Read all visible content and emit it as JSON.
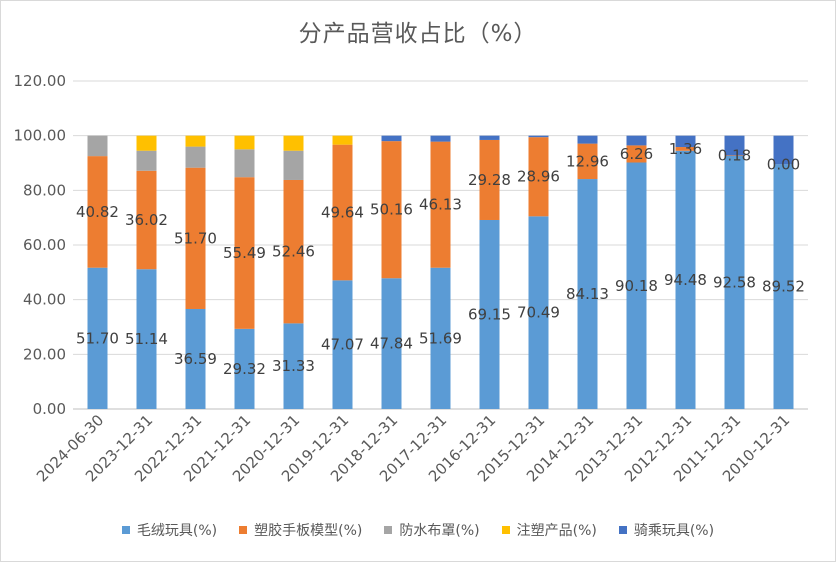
{
  "chart_data": {
    "type": "bar",
    "stacked": true,
    "title": "分产品营收占比（%）",
    "xlabel": "",
    "ylabel": "",
    "ylim": [
      0,
      120
    ],
    "yticks": [
      "0.00",
      "20.00",
      "40.00",
      "60.00",
      "80.00",
      "100.00",
      "120.00"
    ],
    "grid": true,
    "legend_position": "bottom",
    "categories": [
      "2024-06-30",
      "2023-12-31",
      "2022-12-31",
      "2021-12-31",
      "2020-12-31",
      "2019-12-31",
      "2018-12-31",
      "2017-12-31",
      "2016-12-31",
      "2015-12-31",
      "2014-12-31",
      "2013-12-31",
      "2012-12-31",
      "2011-12-31",
      "2010-12-31"
    ],
    "series": [
      {
        "name": "毛绒玩具(%)",
        "color": "#5b9bd5",
        "values": [
          51.7,
          51.14,
          36.59,
          29.32,
          31.33,
          47.07,
          47.84,
          51.69,
          69.15,
          70.49,
          84.13,
          90.18,
          94.48,
          92.58,
          89.52
        ],
        "labels": [
          "51.70",
          "51.14",
          "36.59",
          "29.32",
          "31.33",
          "47.07",
          "47.84",
          "51.69",
          "69.15",
          "70.49",
          "84.13",
          "90.18",
          "94.48",
          "92.58",
          "89.52"
        ]
      },
      {
        "name": "塑胶手板模型(%)",
        "color": "#ed7d31",
        "values": [
          40.82,
          36.02,
          51.7,
          55.49,
          52.46,
          49.64,
          50.16,
          46.13,
          29.28,
          28.96,
          12.96,
          6.26,
          1.36,
          0.18,
          0.0
        ],
        "labels": [
          "40.82",
          "36.02",
          "51.70",
          "55.49",
          "52.46",
          "49.64",
          "50.16",
          "46.13",
          "29.28",
          "28.96",
          "12.96",
          "6.26",
          "1.36",
          "0.18",
          "0.00"
        ]
      },
      {
        "name": "防水布罩(%)",
        "color": "#a5a5a5",
        "values": [
          7.48,
          7.34,
          7.71,
          10.19,
          10.71,
          0,
          0,
          0,
          0,
          0,
          0,
          0,
          0,
          0,
          0
        ],
        "labels": []
      },
      {
        "name": "注塑产品(%)",
        "color": "#ffc000",
        "values": [
          0,
          5.5,
          4.0,
          5.0,
          5.5,
          3.29,
          0,
          0,
          0,
          0,
          0,
          0,
          0,
          0,
          0
        ],
        "labels": []
      },
      {
        "name": "骑乘玩具(%)",
        "color": "#4472c4",
        "values": [
          0,
          0,
          0,
          0,
          0,
          0,
          2.0,
          2.18,
          1.57,
          0.55,
          2.91,
          3.56,
          4.16,
          7.24,
          10.48
        ],
        "labels": []
      }
    ]
  }
}
